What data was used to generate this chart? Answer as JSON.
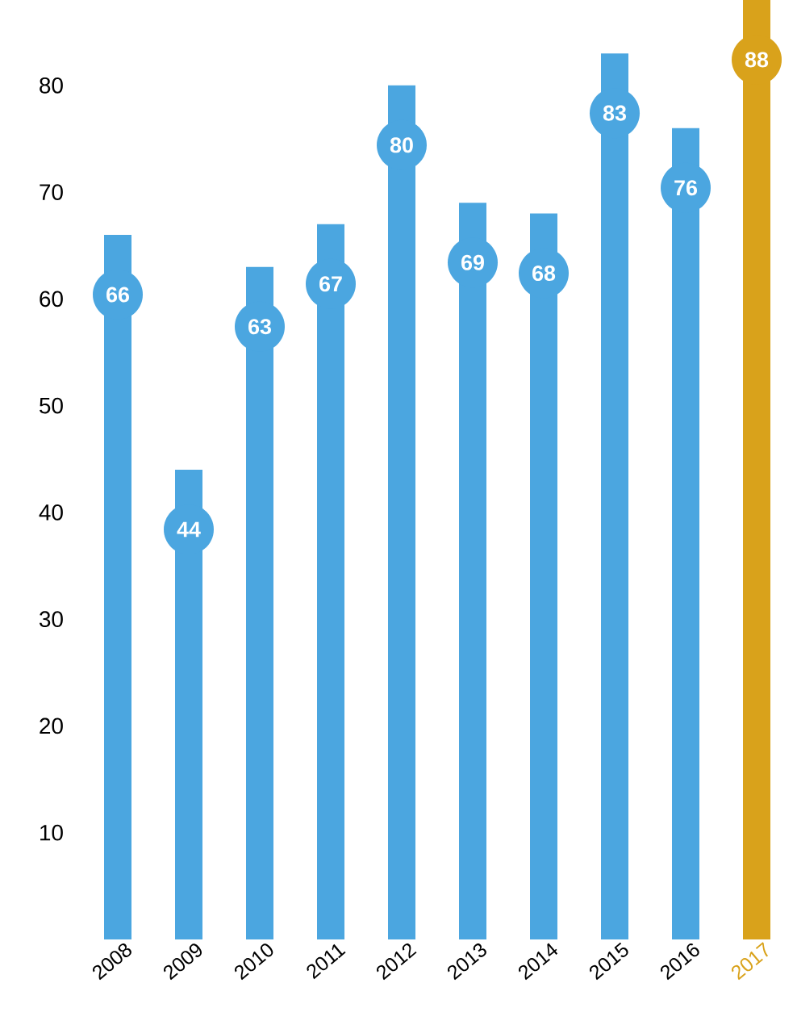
{
  "chart_data": {
    "type": "bar",
    "categories": [
      "2008",
      "2009",
      "2010",
      "2011",
      "2012",
      "2013",
      "2014",
      "2015",
      "2016",
      "2017"
    ],
    "values": [
      66,
      44,
      63,
      67,
      80,
      69,
      68,
      83,
      76,
      88
    ],
    "colors": [
      "#4ba6e0",
      "#4ba6e0",
      "#4ba6e0",
      "#4ba6e0",
      "#4ba6e0",
      "#4ba6e0",
      "#4ba6e0",
      "#4ba6e0",
      "#4ba6e0",
      "#d9a21b"
    ],
    "ylim": [
      0,
      88
    ],
    "yticks": [
      10,
      20,
      30,
      40,
      50,
      60,
      70,
      80
    ],
    "data_labels": true
  }
}
